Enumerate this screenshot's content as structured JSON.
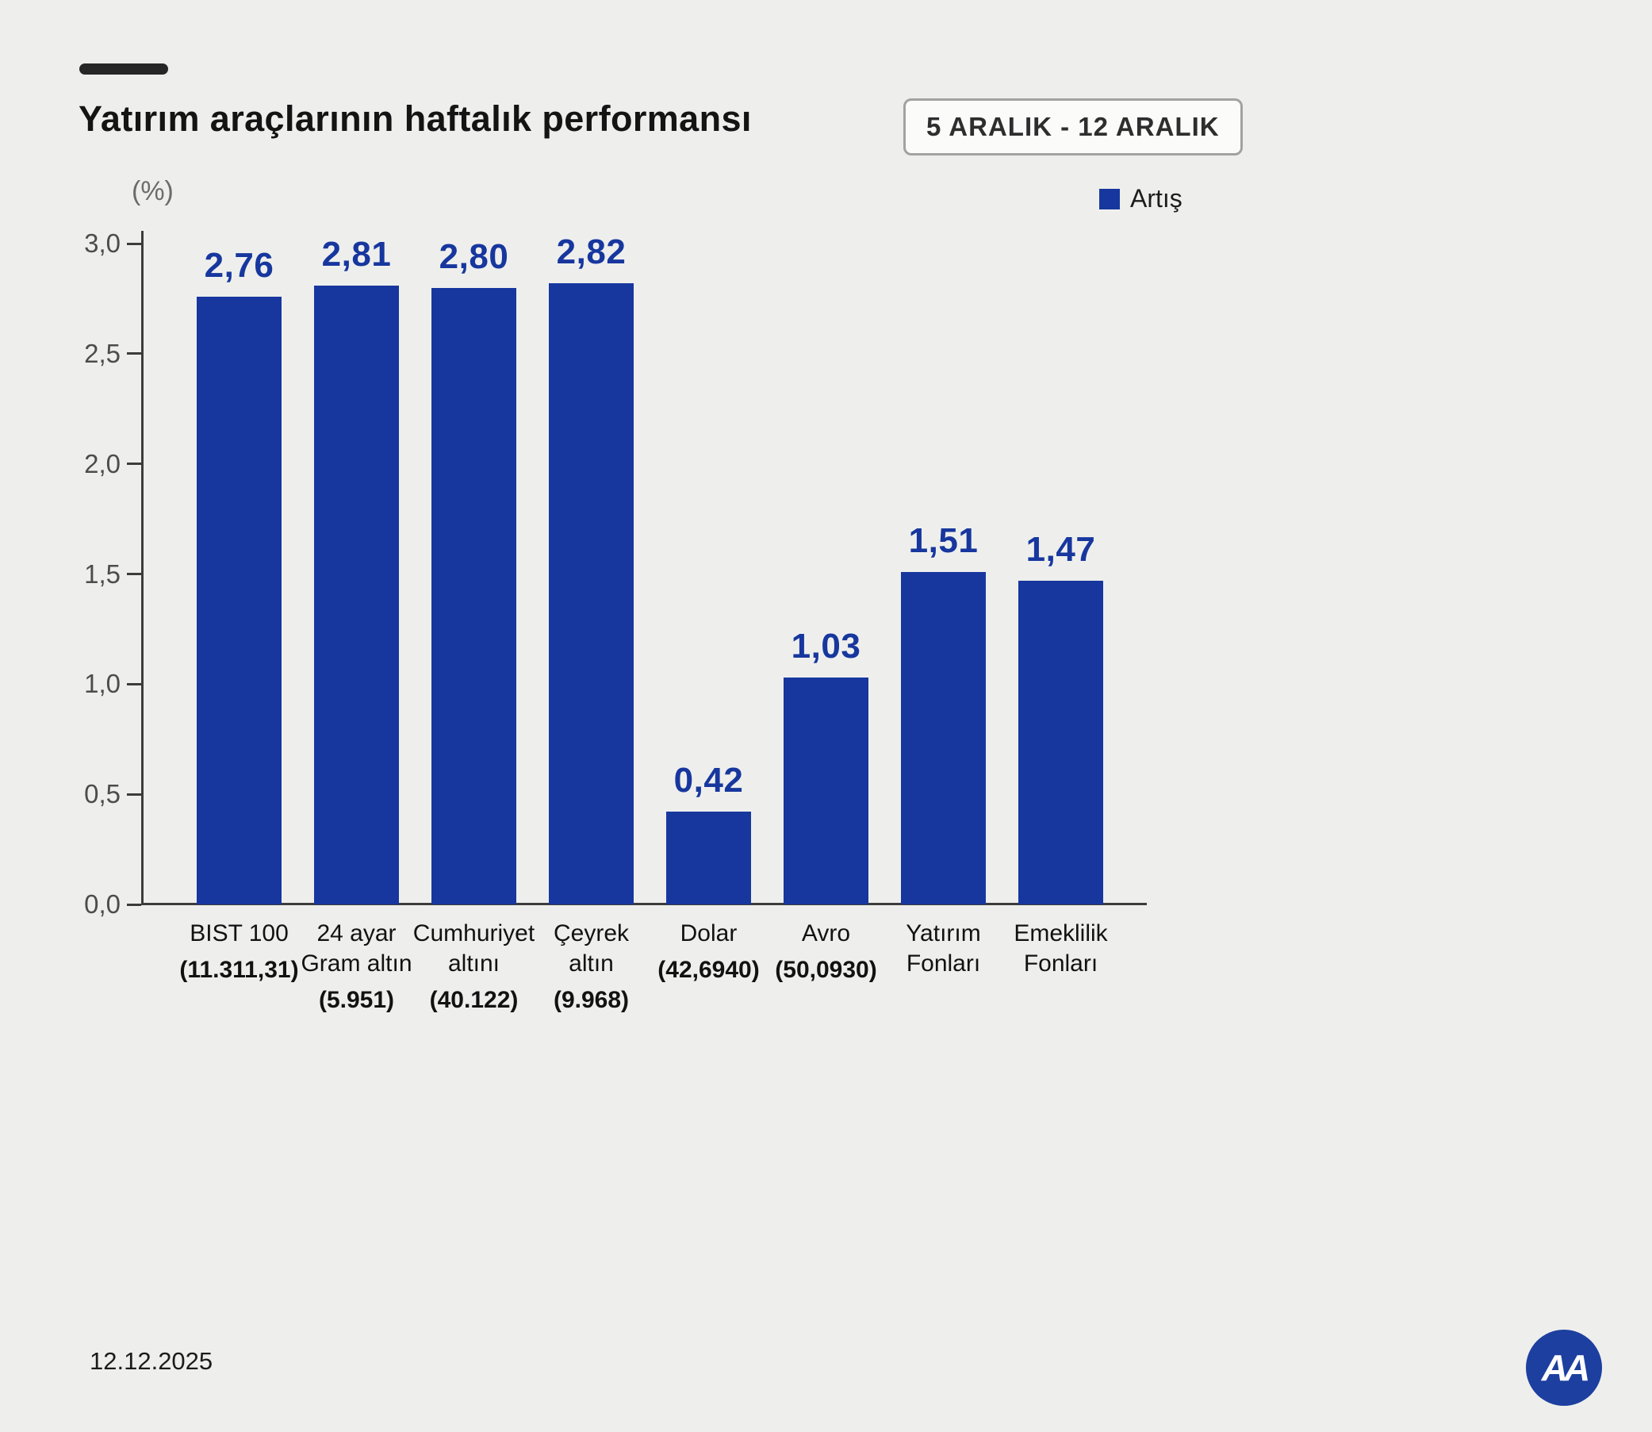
{
  "header": {
    "title": "Yatırım araçlarının haftalık performansı",
    "date_range": "5 ARALIK - 12 ARALIK"
  },
  "legend": {
    "label": "Artış"
  },
  "axis": {
    "unit_label": "(%)"
  },
  "footer": {
    "date": "12.12.2025",
    "logo_text": "AA"
  },
  "colors": {
    "background": "#eeefed",
    "bar": "#17379e",
    "value_label": "#17379e",
    "axis": "#3c3c3c"
  },
  "chart_data": {
    "type": "bar",
    "title": "Yatırım araçlarının haftalık performansı",
    "subtitle": "5 ARALIK - 12 ARALIK",
    "ylabel": "(%)",
    "xlabel": "",
    "ylim": [
      0,
      3.0
    ],
    "grid": false,
    "legend_position": "top-right",
    "legend_entries": [
      "Artış"
    ],
    "yticks": [
      {
        "value": 3.0,
        "label": "3,0"
      },
      {
        "value": 2.5,
        "label": "2,5"
      },
      {
        "value": 2.0,
        "label": "2,0"
      },
      {
        "value": 1.5,
        "label": "1,5"
      },
      {
        "value": 1.0,
        "label": "1,0"
      },
      {
        "value": 0.5,
        "label": "0,5"
      },
      {
        "value": 0.0,
        "label": "0,0"
      }
    ],
    "categories": [
      "BIST 100",
      "24 ayar Gram altın",
      "Cumhuriyet altını",
      "Çeyrek altın",
      "Dolar",
      "Avro",
      "Yatırım Fonları",
      "Emeklilik Fonları"
    ],
    "values": [
      2.76,
      2.81,
      2.8,
      2.82,
      0.42,
      1.03,
      1.51,
      1.47
    ],
    "bars": [
      {
        "name_lines": [
          "BIST 100"
        ],
        "detail": "(11.311,31)",
        "value": 2.76,
        "value_label": "2,76"
      },
      {
        "name_lines": [
          "24 ayar",
          "Gram altın"
        ],
        "detail": "(5.951)",
        "value": 2.81,
        "value_label": "2,81"
      },
      {
        "name_lines": [
          "Cumhuriyet",
          "altını"
        ],
        "detail": "(40.122)",
        "value": 2.8,
        "value_label": "2,80"
      },
      {
        "name_lines": [
          "Çeyrek",
          "altın"
        ],
        "detail": "(9.968)",
        "value": 2.82,
        "value_label": "2,82"
      },
      {
        "name_lines": [
          "Dolar"
        ],
        "detail": "(42,6940)",
        "value": 0.42,
        "value_label": "0,42"
      },
      {
        "name_lines": [
          "Avro"
        ],
        "detail": "(50,0930)",
        "value": 1.03,
        "value_label": "1,03"
      },
      {
        "name_lines": [
          "Yatırım",
          "Fonları"
        ],
        "detail": "",
        "value": 1.51,
        "value_label": "1,51"
      },
      {
        "name_lines": [
          "Emeklilik",
          "Fonları"
        ],
        "detail": "",
        "value": 1.47,
        "value_label": "1,47"
      }
    ]
  }
}
